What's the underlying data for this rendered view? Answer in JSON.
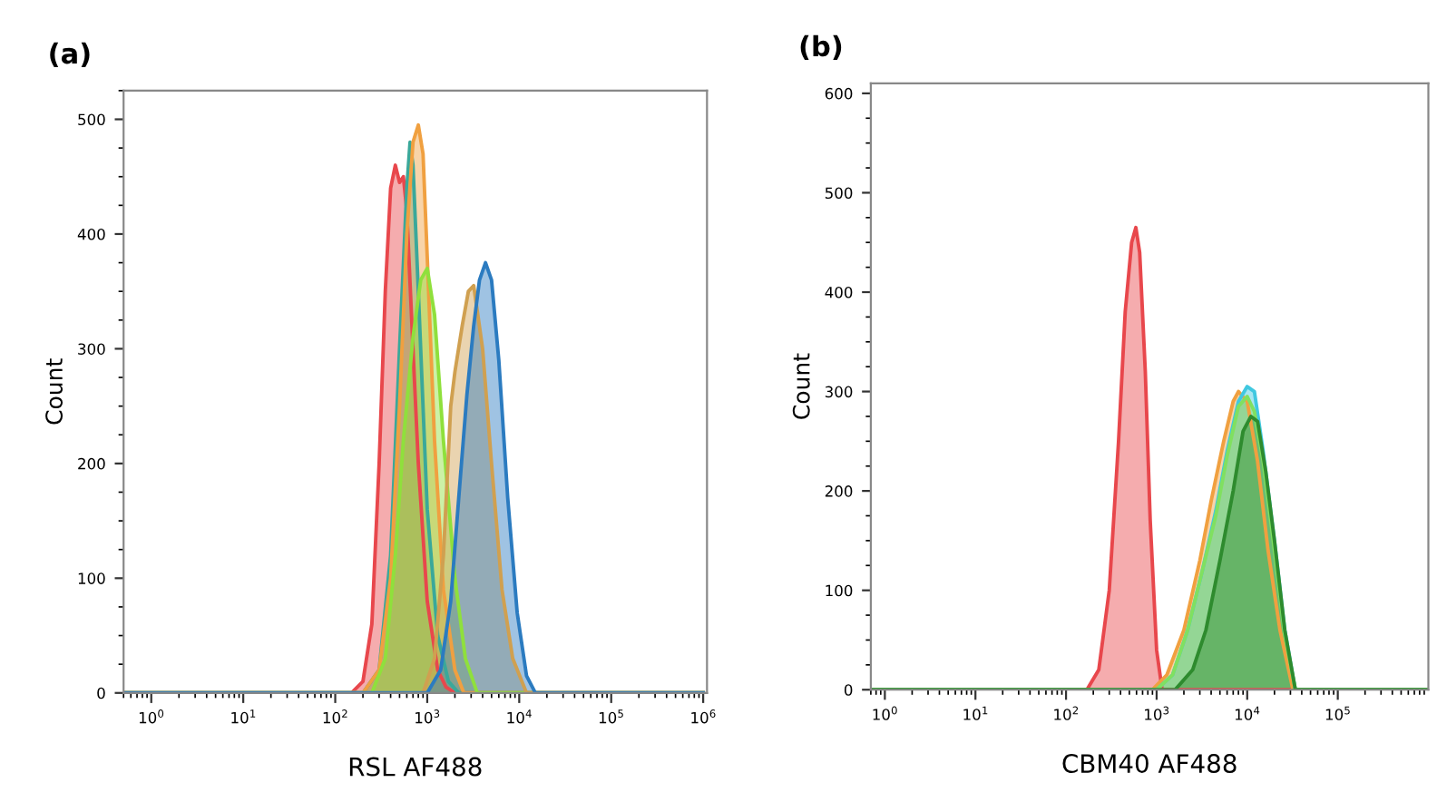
{
  "chart_data": [
    {
      "type": "area",
      "title": "(a)",
      "xlabel": "RSL AF488",
      "ylabel": "Count",
      "log": "x",
      "xlim": [
        0.5,
        1100000
      ],
      "ylim": [
        0,
        525
      ],
      "xticks": [
        {
          "value": 1,
          "label": "10$^{0}$"
        },
        {
          "value": 10,
          "label": "10$^{1}$"
        },
        {
          "value": 100,
          "label": "10$^{2}$"
        },
        {
          "value": 1000,
          "label": "10$^{3}$"
        },
        {
          "value": 10000,
          "label": "10$^{4}$"
        },
        {
          "value": 100000,
          "label": "10$^{5}$"
        },
        {
          "value": 1000000,
          "label": "10$^{6}$"
        }
      ],
      "yticks": [
        0,
        100,
        200,
        300,
        400,
        500
      ],
      "grid": false,
      "legend": false,
      "series": [
        {
          "color": "#e8474c",
          "x": [
            0.5,
            150,
            200,
            250,
            300,
            350,
            400,
            450,
            500,
            550,
            600,
            700,
            800,
            1000,
            1300,
            1600,
            2000,
            1000000
          ],
          "values": [
            0,
            0,
            10,
            60,
            200,
            350,
            440,
            460,
            445,
            450,
            420,
            300,
            200,
            80,
            20,
            5,
            0,
            0
          ]
        },
        {
          "color": "#3aa89a",
          "x": [
            0.5,
            200,
            300,
            400,
            500,
            600,
            650,
            700,
            800,
            1000,
            1300,
            1700,
            2200,
            1000000
          ],
          "values": [
            0,
            0,
            20,
            120,
            300,
            440,
            480,
            460,
            350,
            160,
            50,
            10,
            0,
            0
          ]
        },
        {
          "color": "#f0a040",
          "x": [
            0.5,
            200,
            300,
            400,
            500,
            600,
            700,
            800,
            900,
            1000,
            1200,
            1500,
            2000,
            2500,
            1000000
          ],
          "values": [
            0,
            0,
            20,
            100,
            250,
            400,
            480,
            495,
            470,
            380,
            220,
            90,
            20,
            0,
            0
          ]
        },
        {
          "color": "#8fe03c",
          "x": [
            0.5,
            250,
            350,
            450,
            550,
            700,
            850,
            1000,
            1200,
            1500,
            2000,
            2600,
            3500,
            1000000
          ],
          "values": [
            0,
            0,
            30,
            120,
            220,
            310,
            360,
            370,
            330,
            220,
            100,
            30,
            0,
            0
          ]
        },
        {
          "color": "#d0a050",
          "x": [
            0.5,
            900,
            1200,
            1500,
            1800,
            2000,
            2400,
            2800,
            3200,
            4000,
            5000,
            6500,
            8500,
            12000,
            1000000
          ],
          "values": [
            0,
            0,
            30,
            120,
            250,
            280,
            320,
            350,
            355,
            300,
            200,
            90,
            30,
            0,
            0
          ]
        },
        {
          "color": "#2b7bc0",
          "x": [
            0.5,
            1000,
            1400,
            1800,
            2200,
            2700,
            3200,
            3700,
            4300,
            5000,
            6000,
            7500,
            9500,
            12000,
            15000,
            1000000
          ],
          "values": [
            0,
            0,
            20,
            80,
            170,
            260,
            320,
            360,
            375,
            360,
            290,
            170,
            70,
            15,
            0,
            0
          ]
        }
      ]
    },
    {
      "type": "area",
      "title": "(b)",
      "xlabel": "CBM40 AF488",
      "ylabel": "Count",
      "log": "x",
      "xlim": [
        0.7,
        1000000
      ],
      "ylim": [
        0,
        610
      ],
      "xticks": [
        {
          "value": 1,
          "label": "10$^{0}$"
        },
        {
          "value": 10,
          "label": "10$^{1}$"
        },
        {
          "value": 100,
          "label": "10$^{2}$"
        },
        {
          "value": 1000,
          "label": "10$^{3}$"
        },
        {
          "value": 10000,
          "label": "10$^{4}$"
        },
        {
          "value": 100000,
          "label": "10$^{5}$"
        }
      ],
      "yticks": [
        0,
        100,
        200,
        300,
        400,
        500,
        600
      ],
      "grid": false,
      "legend": false,
      "series": [
        {
          "color": "#e8474c",
          "x": [
            0.7,
            170,
            230,
            300,
            380,
            450,
            530,
            590,
            650,
            750,
            850,
            1000,
            1150,
            1000000
          ],
          "values": [
            0,
            0,
            20,
            100,
            250,
            380,
            450,
            465,
            440,
            320,
            170,
            40,
            0,
            0
          ]
        },
        {
          "color": "#f0a040",
          "x": [
            0.7,
            900,
            1300,
            2000,
            3000,
            4000,
            5500,
            7000,
            8000,
            10000,
            13000,
            17000,
            23000,
            32000,
            1000000
          ],
          "values": [
            0,
            0,
            15,
            60,
            130,
            190,
            250,
            290,
            300,
            290,
            230,
            140,
            60,
            0,
            0
          ]
        },
        {
          "color": "#40c8e0",
          "x": [
            0.7,
            1000,
            1500,
            2200,
            3200,
            4500,
            6000,
            8000,
            10000,
            12000,
            15000,
            20000,
            26000,
            34000,
            1000000
          ],
          "values": [
            0,
            0,
            15,
            60,
            120,
            180,
            240,
            290,
            305,
            300,
            240,
            150,
            60,
            0,
            0
          ]
        },
        {
          "color": "#80e060",
          "x": [
            0.7,
            1000,
            1500,
            2200,
            3200,
            4500,
            6000,
            8000,
            10000,
            12000,
            15000,
            20000,
            26000,
            34000,
            1000000
          ],
          "values": [
            0,
            0,
            15,
            60,
            120,
            175,
            235,
            285,
            295,
            280,
            230,
            140,
            55,
            0,
            0
          ]
        },
        {
          "color": "#2e8b2e",
          "x": [
            0.7,
            1600,
            2500,
            3500,
            5000,
            7000,
            9000,
            11000,
            13000,
            16000,
            20000,
            26000,
            34000,
            1000000
          ],
          "values": [
            0,
            0,
            20,
            60,
            130,
            200,
            260,
            275,
            270,
            220,
            150,
            60,
            0,
            0
          ]
        }
      ]
    }
  ]
}
